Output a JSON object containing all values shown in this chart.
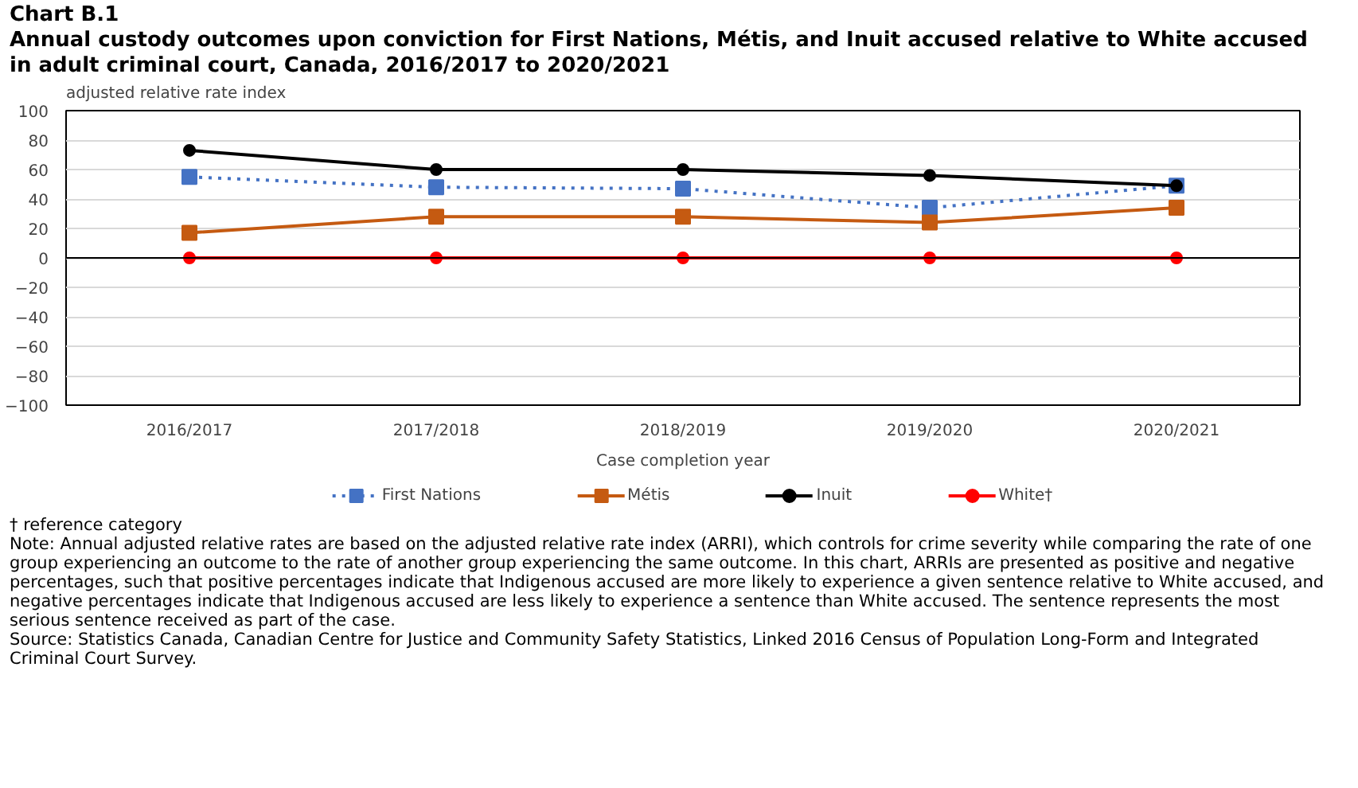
{
  "chart_data": {
    "type": "line",
    "title": "Chart B.1",
    "subtitle": "Annual custody outcomes upon conviction for First Nations, Métis, and Inuit accused relative to White accused in adult criminal court, Canada, 2016/2017 to 2020/2021",
    "ylabel": "adjusted relative rate index",
    "xlabel": "Case completion year",
    "categories": [
      "2016/2017",
      "2017/2018",
      "2018/2019",
      "2019/2020",
      "2020/2021"
    ],
    "ylim": [
      -100,
      100
    ],
    "yticks": [
      -100,
      -80,
      -60,
      -40,
      -20,
      0,
      20,
      40,
      60,
      80,
      100
    ],
    "grid": "y",
    "legend": "bottom",
    "series": [
      {
        "name": "First Nations",
        "color": "#4472c4",
        "values": [
          55,
          48,
          47,
          34,
          49
        ],
        "marker": "square",
        "line_style": "dotted"
      },
      {
        "name": "Métis",
        "color": "#c55a11",
        "values": [
          17,
          28,
          28,
          24,
          34
        ],
        "marker": "square",
        "line_style": "solid"
      },
      {
        "name": "Inuit",
        "color": "#000000",
        "values": [
          73,
          60,
          60,
          56,
          49
        ],
        "marker": "circle",
        "line_style": "solid"
      },
      {
        "name": "White†",
        "color": "#ff0000",
        "values": [
          0,
          0,
          0,
          0,
          0
        ],
        "marker": "circle",
        "line_style": "solid"
      }
    ],
    "annotations": [
      "† reference category",
      "Note: Annual adjusted relative rates are based on the adjusted relative rate index (ARRI), which controls for crime severity while comparing the rate of one group experiencing an outcome to the rate of another group experiencing the same outcome. In this chart, ARRIs are presented as positive and negative percentages, such that positive percentages indicate that Indigenous accused are more likely to experience a given sentence relative to White accused, and negative percentages indicate that Indigenous accused are less likely to experience a sentence than White accused. The sentence represents the most serious sentence received as part of the case.",
      "Source: Statistics Canada, Canadian Centre for Justice and Community Safety Statistics, Linked 2016 Census of Population Long-Form and Integrated Criminal Court Survey."
    ]
  }
}
